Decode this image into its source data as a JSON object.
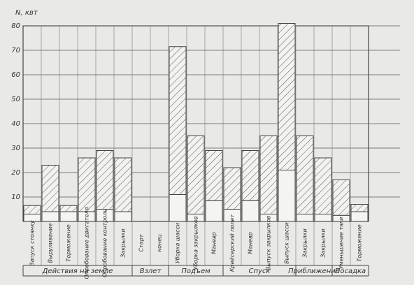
{
  "chart_data": {
    "type": "bar",
    "y_label": "N, квт",
    "groups": [
      {
        "label": "Действия на земле",
        "categories": [
          "Запуск стоянку",
          "Выруливание",
          "Торможение",
          "Опробование двигателя",
          "Опробование контроль",
          "Закрылки"
        ]
      },
      {
        "label": "Взлет",
        "categories": [
          "Старт",
          "конец"
        ]
      },
      {
        "label": "Подъем",
        "categories": [
          "Уборка шасси",
          "Уборка закрылков",
          "Маневр"
        ]
      },
      {
        "label": "Спуск",
        "categories": [
          "Крейсерский полет",
          "Маневр",
          "Выпуск закрылков",
          "Выпуск шасси"
        ]
      },
      {
        "label": "Приближение",
        "categories": [
          "Закрылки",
          "Закрылки"
        ]
      },
      {
        "label": "Посадка",
        "categories": [
          "Уменьшение тяги",
          "Торможение"
        ]
      }
    ],
    "series": [
      {
        "color": "#f4f4f2",
        "values": [
          3,
          4,
          4,
          4,
          5,
          4,
          null,
          null,
          11,
          3,
          8.5,
          5,
          8.5,
          3,
          21,
          3,
          3,
          2.5,
          4
        ]
      },
      {
        "color": "#555555",
        "hatch": true,
        "values": [
          3.5,
          19,
          2.5,
          22,
          24,
          22,
          null,
          null,
          60.5,
          32,
          20.5,
          17,
          20.5,
          32,
          60,
          32,
          23,
          14.5,
          3
        ]
      }
    ],
    "ylim": [
      0,
      80
    ],
    "yticks": [
      10,
      20,
      30,
      40,
      50,
      60,
      70,
      80
    ],
    "grid": true
  }
}
